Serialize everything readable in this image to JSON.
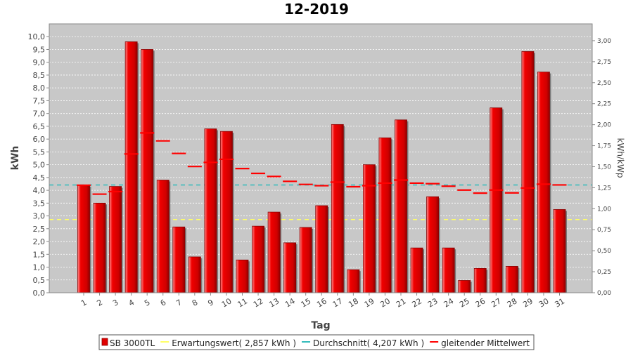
{
  "chart_data": {
    "type": "bar",
    "title": "12-2019",
    "xlabel": "Tag",
    "ylabel": "kWh",
    "ylabel_right": "kWh/kWp",
    "ylim": [
      0,
      10.5
    ],
    "ylim_right": [
      0,
      3.2
    ],
    "y_ticks": [
      "0,0",
      "0,5",
      "1,0",
      "1,5",
      "2,0",
      "2,5",
      "3,0",
      "3,5",
      "4,0",
      "4,5",
      "5,0",
      "5,5",
      "6,0",
      "6,5",
      "7,0",
      "7,5",
      "8,0",
      "8,5",
      "9,0",
      "9,5",
      "10,0"
    ],
    "y_ticks_right": [
      "0,00",
      "0,25",
      "0,50",
      "0,75",
      "1,00",
      "1,25",
      "1,50",
      "1,75",
      "2,00",
      "2,25",
      "2,50",
      "2,75",
      "3,00"
    ],
    "categories": [
      "1",
      "2",
      "3",
      "4",
      "5",
      "6",
      "7",
      "8",
      "9",
      "10",
      "11",
      "12",
      "13",
      "14",
      "15",
      "16",
      "17",
      "18",
      "19",
      "20",
      "21",
      "22",
      "23",
      "24",
      "25",
      "26",
      "27",
      "28",
      "29",
      "30",
      "31"
    ],
    "series": [
      {
        "name": "SB 3000TL",
        "kind": "bar",
        "color": "#e00000",
        "values": [
          4.2,
          3.5,
          4.15,
          9.8,
          9.5,
          4.4,
          2.57,
          1.4,
          6.4,
          6.3,
          1.28,
          2.6,
          3.15,
          1.95,
          2.55,
          3.4,
          6.57,
          0.9,
          5.0,
          6.05,
          6.75,
          1.75,
          3.75,
          1.75,
          0.48,
          0.95,
          7.22,
          1.03,
          9.42,
          8.62,
          3.25
        ]
      },
      {
        "name": "gleitender Mittelwert",
        "kind": "dash",
        "color": "#ff0000",
        "values": [
          4.2,
          3.85,
          3.95,
          5.42,
          6.24,
          5.93,
          5.44,
          4.93,
          5.09,
          5.21,
          4.85,
          4.66,
          4.54,
          4.35,
          4.23,
          4.18,
          4.32,
          4.14,
          4.18,
          4.28,
          4.4,
          4.28,
          4.26,
          4.16,
          4.01,
          3.89,
          4.01,
          3.9,
          4.09,
          4.24,
          4.21
        ]
      }
    ],
    "reference_lines": [
      {
        "name": "Erwartungswert( 2,857 kWh )",
        "value": 2.857,
        "color": "#ffff66"
      },
      {
        "name": "Durchschnitt( 4,207 kWh )",
        "value": 4.207,
        "color": "#33bbbb"
      }
    ],
    "grid": true,
    "legend_placement": "bottom"
  },
  "colors": {
    "plot_background": "#c8c8c8",
    "bar": "#e00000",
    "bar_dark": "#8a0000",
    "bar_highlight": "#ff6a6a"
  }
}
